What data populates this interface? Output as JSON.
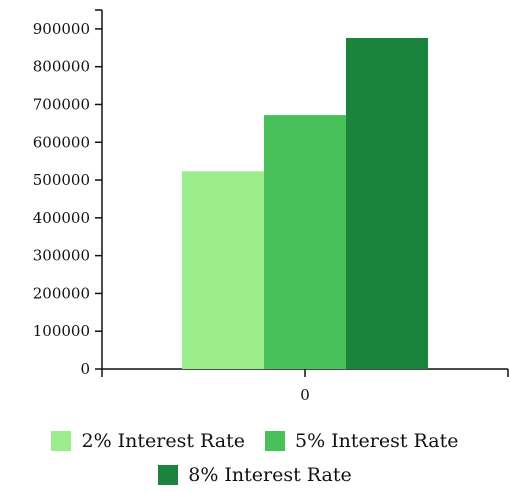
{
  "chart_data": {
    "type": "bar",
    "categories": [
      "0"
    ],
    "series": [
      {
        "name": "2% Interest Rate",
        "values": [
          523000
        ],
        "color": "#9bec8a"
      },
      {
        "name": "5% Interest Rate",
        "values": [
          672000
        ],
        "color": "#48c15b"
      },
      {
        "name": "8% Interest Rate",
        "values": [
          876000
        ],
        "color": "#1a843c"
      }
    ],
    "y_ticks": [
      "0",
      "100000",
      "200000",
      "300000",
      "400000",
      "500000",
      "600000",
      "700000",
      "800000",
      "900000"
    ],
    "ylim": [
      0,
      950000
    ],
    "grid": false,
    "legend_position": "bottom"
  }
}
